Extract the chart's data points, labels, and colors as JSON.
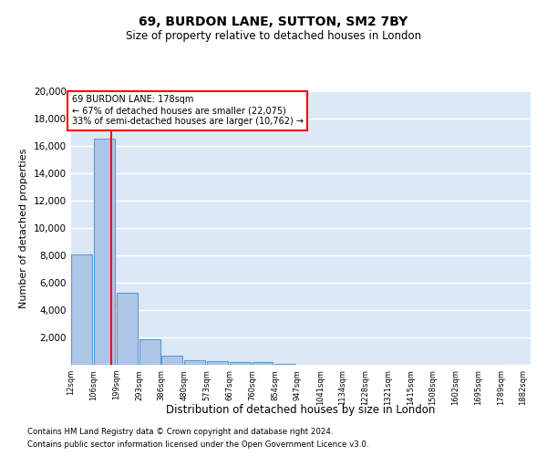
{
  "title1": "69, BURDON LANE, SUTTON, SM2 7BY",
  "title2": "Size of property relative to detached houses in London",
  "xlabel": "Distribution of detached houses by size in London",
  "ylabel": "Number of detached properties",
  "bar_values": [
    8100,
    16500,
    5300,
    1850,
    700,
    350,
    275,
    200,
    175,
    50,
    25,
    18,
    12,
    8,
    6,
    4,
    3,
    2,
    2
  ],
  "bar_left_edges": [
    12,
    106,
    199,
    293,
    386,
    480,
    573,
    667,
    760,
    854,
    947,
    1041,
    1134,
    1228,
    1321,
    1415,
    1508,
    1602,
    1695
  ],
  "bin_width": 93,
  "xtick_labels": [
    "12sqm",
    "106sqm",
    "199sqm",
    "293sqm",
    "386sqm",
    "480sqm",
    "573sqm",
    "667sqm",
    "760sqm",
    "854sqm",
    "947sqm",
    "1041sqm",
    "1134sqm",
    "1228sqm",
    "1321sqm",
    "1415sqm",
    "1508sqm",
    "1602sqm",
    "1695sqm",
    "1789sqm",
    "1882sqm"
  ],
  "bar_color": "#aec6e8",
  "bar_edge_color": "#5b9bd5",
  "property_size": 178,
  "annotation_line1": "69 BURDON LANE: 178sqm",
  "annotation_line2": "← 67% of detached houses are smaller (22,075)",
  "annotation_line3": "33% of semi-detached houses are larger (10,762) →",
  "ylim_max": 20000,
  "yticks": [
    0,
    2000,
    4000,
    6000,
    8000,
    10000,
    12000,
    14000,
    16000,
    18000,
    20000
  ],
  "background_color": "#dce8f5",
  "grid_color": "#ffffff",
  "footer1": "Contains HM Land Registry data © Crown copyright and database right 2024.",
  "footer2": "Contains public sector information licensed under the Open Government Licence v3.0."
}
